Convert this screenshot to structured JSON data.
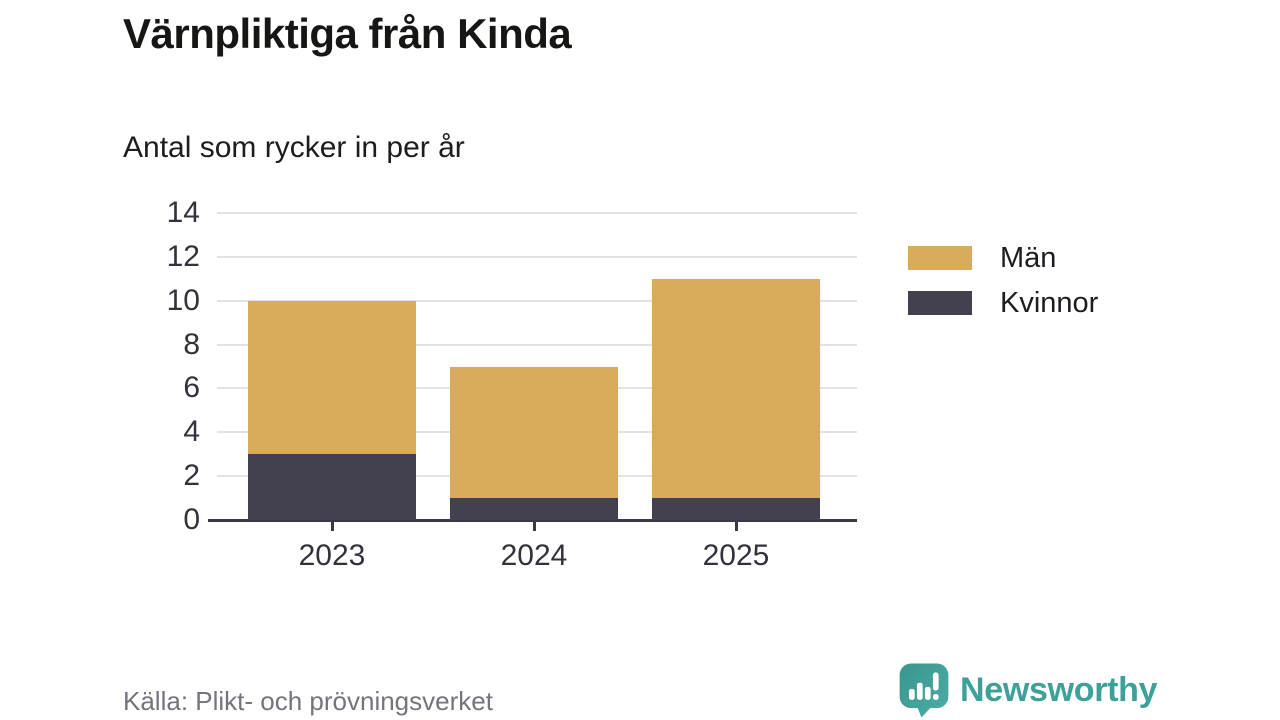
{
  "title": "Värnpliktiga från Kinda",
  "subtitle": "Antal som rycker in per år",
  "source": "Källa: Plikt- och prövningsverket",
  "brand": {
    "name": "Newsworthy",
    "color": "#3da19a",
    "icon": "newsworthy-chart-bubble-icon"
  },
  "colors": {
    "men": "#d8ab5a",
    "women": "#434050",
    "gridline": "#e2e2e4",
    "axis": "#3b3945",
    "title_text": "#161614",
    "muted_text": "#75747e"
  },
  "legend": {
    "items": [
      {
        "label": "Män",
        "color": "#d8ab5a"
      },
      {
        "label": "Kvinnor",
        "color": "#434050"
      }
    ]
  },
  "chart_data": {
    "type": "bar",
    "stacked": true,
    "title": "Värnpliktiga från Kinda",
    "subtitle": "Antal som rycker in per år",
    "xlabel": "",
    "ylabel": "",
    "categories": [
      "2023",
      "2024",
      "2025"
    ],
    "series": [
      {
        "name": "Män",
        "color": "#d8ab5a",
        "values": [
          7,
          6,
          10
        ]
      },
      {
        "name": "Kvinnor",
        "color": "#434050",
        "values": [
          3,
          1,
          1
        ]
      }
    ],
    "totals": [
      10,
      7,
      11
    ],
    "ylim": [
      0,
      14
    ],
    "yticks": [
      0,
      2,
      4,
      6,
      8,
      10,
      12,
      14
    ],
    "grid": true,
    "legend_position": "right"
  }
}
